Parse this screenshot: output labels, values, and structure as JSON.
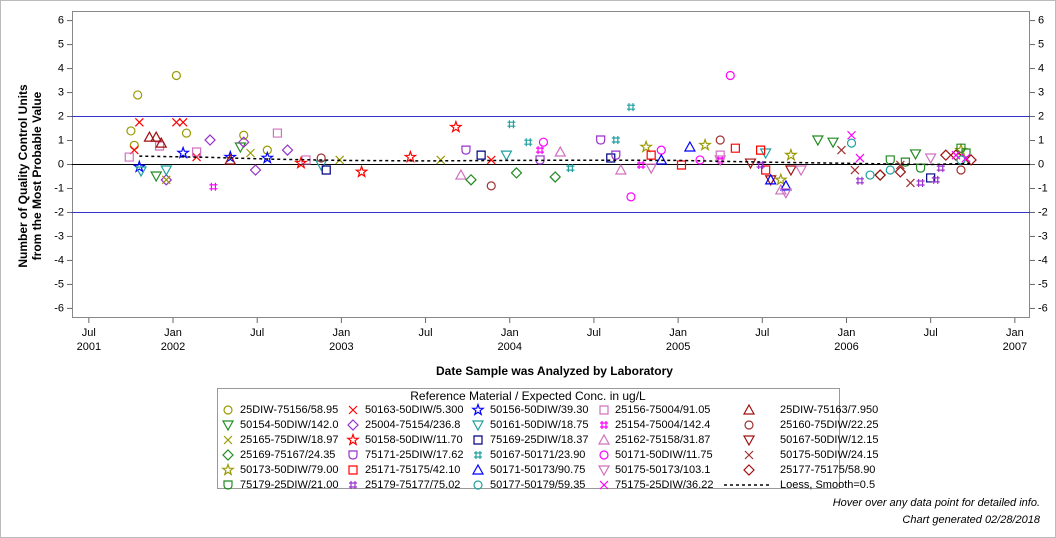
{
  "chart_data": {
    "type": "scatter",
    "y_label": [
      "Number of Quality Control Units",
      "from the Most Probable Value"
    ],
    "x_label": "Date Sample was Analyzed by Laboratory",
    "legend_title": "Reference Material / Expected Conc. in ug/L",
    "footnotes": [
      "Hover over any data point for detailed info.",
      "Chart generated 02/28/2018"
    ],
    "xlim": [
      2001.4,
      2007.09
    ],
    "ylim": [
      -6.4,
      6.4
    ],
    "xticks": [
      {
        "value": 2001.5,
        "label": [
          "Jul",
          "2001"
        ]
      },
      {
        "value": 2002.0,
        "label": [
          "Jan",
          "2002"
        ]
      },
      {
        "value": 2002.5,
        "label": [
          "Jul"
        ]
      },
      {
        "value": 2003.0,
        "label": [
          "Jan",
          "2003"
        ]
      },
      {
        "value": 2003.5,
        "label": [
          "Jul"
        ]
      },
      {
        "value": 2004.0,
        "label": [
          "Jan",
          "2004"
        ]
      },
      {
        "value": 2004.5,
        "label": [
          "Jul"
        ]
      },
      {
        "value": 2005.0,
        "label": [
          "Jan",
          "2005"
        ]
      },
      {
        "value": 2005.5,
        "label": [
          "Jul"
        ]
      },
      {
        "value": 2006.0,
        "label": [
          "Jan",
          "2006"
        ]
      },
      {
        "value": 2006.5,
        "label": [
          "Jul"
        ]
      },
      {
        "value": 2007.0,
        "label": [
          "Jan",
          "2007"
        ]
      }
    ],
    "yticks": [
      -6,
      -5,
      -4,
      -3,
      -2,
      -1,
      0,
      1,
      2,
      3,
      4,
      5,
      6
    ],
    "reference_lines": [
      {
        "value": 2,
        "color": "#3333cc"
      },
      {
        "value": 0,
        "color": "#000000"
      },
      {
        "value": -2,
        "color": "#3333cc"
      }
    ],
    "series": [
      {
        "name": "25DIW-75156/58.95",
        "marker": "circle",
        "color": "#999900",
        "x": [
          2001.75,
          2001.79,
          2001.77,
          2002.02,
          2002.08,
          2002.42,
          2002.56
        ],
        "values": [
          1.4,
          2.9,
          0.8,
          3.71,
          1.31,
          1.22,
          0.6
        ]
      },
      {
        "name": "50163-50DIW/5.300",
        "marker": "x",
        "color": "#ff0000",
        "x": [
          2001.8,
          2002.02,
          2002.06,
          2001.77,
          2002.14,
          2003.89
        ],
        "values": [
          1.76,
          1.76,
          1.76,
          0.6,
          0.31,
          0.19
        ]
      },
      {
        "name": "50156-50DIW/39.30",
        "marker": "star",
        "color": "#0000ff",
        "x": [
          2001.8,
          2002.06,
          2002.56,
          2002.34
        ],
        "values": [
          -0.1,
          0.48,
          0.27,
          0.31
        ]
      },
      {
        "name": "25156-75004/91.05",
        "marker": "square",
        "color": "#d070c0",
        "x": [
          2001.74,
          2001.92,
          2002.14,
          2002.62,
          2002.79,
          2005.25
        ],
        "values": [
          0.31,
          0.77,
          0.52,
          1.31,
          0.19,
          0.39
        ]
      },
      {
        "name": "25DIW-75163/7.950",
        "marker": "triangle",
        "color": "#a01010",
        "x": [
          2001.86,
          2001.9,
          2001.93,
          2002.34
        ],
        "values": [
          1.14,
          1.14,
          0.89,
          0.19
        ]
      },
      {
        "name": "50154-50DIW/142.0",
        "marker": "tridown",
        "color": "#228b22",
        "x": [
          2001.9,
          2002.4,
          2005.83,
          2005.92,
          2006.41
        ],
        "values": [
          -0.48,
          0.73,
          1.02,
          0.93,
          0.44
        ]
      },
      {
        "name": "25004-75154/236.8",
        "marker": "diamond",
        "color": "#9932cc",
        "x": [
          2001.96,
          2002.22,
          2002.42,
          2002.49,
          2002.68
        ],
        "values": [
          -0.64,
          1.02,
          0.93,
          -0.23,
          0.6
        ]
      },
      {
        "name": "50161-50DIW/18.75",
        "marker": "tridown",
        "color": "#20a0a0",
        "x": [
          2001.81,
          2001.96,
          2002.88,
          2003.98,
          2005.52
        ],
        "values": [
          -0.27,
          -0.23,
          -0.02,
          0.39,
          0.48
        ]
      },
      {
        "name": "25154-75004/142.4",
        "marker": "asterisk",
        "color": "#ff00ff",
        "x": [
          2002.24,
          2004.18,
          2004.78,
          2005.25
        ],
        "values": [
          -0.93,
          0.6,
          -0.02,
          0.19
        ]
      },
      {
        "name": "25160-75DIW/22.25",
        "marker": "circle",
        "color": "#a03030",
        "x": [
          2003.89,
          2002.88,
          2005.25,
          2006.68
        ],
        "values": [
          -0.89,
          0.27,
          1.02,
          -0.23
        ]
      },
      {
        "name": "25165-75DIW/18.97",
        "marker": "x",
        "color": "#999900",
        "x": [
          2001.96,
          2002.46,
          2002.99,
          2003.59
        ],
        "values": [
          -0.64,
          0.48,
          0.19,
          0.19
        ]
      },
      {
        "name": "50158-50DIW/11.70",
        "marker": "star",
        "color": "#ff0000",
        "x": [
          2003.68,
          2003.12,
          2003.41,
          2002.76
        ],
        "values": [
          1.56,
          -0.31,
          0.31,
          0.06
        ]
      },
      {
        "name": "75169-25DIW/18.37",
        "marker": "square",
        "color": "#000080",
        "x": [
          2002.91,
          2004.6,
          2006.5,
          2003.83
        ],
        "values": [
          -0.23,
          0.27,
          -0.56,
          0.39
        ]
      },
      {
        "name": "25162-75158/31.87",
        "marker": "triangle",
        "color": "#d070c0",
        "x": [
          2003.71,
          2004.3,
          2005.61,
          2004.66
        ],
        "values": [
          -0.44,
          0.52,
          -1.06,
          -0.23
        ]
      },
      {
        "name": "50167-50DIW/12.15",
        "marker": "tridown",
        "color": "#a01010",
        "x": [
          2005.55,
          2005.67,
          2005.43
        ],
        "values": [
          -0.64,
          -0.23,
          0.06
        ]
      },
      {
        "name": "25169-75167/24.35",
        "marker": "diamond",
        "color": "#228b22",
        "x": [
          2003.77,
          2004.04,
          2004.27,
          2006.2
        ],
        "values": [
          -0.64,
          -0.35,
          -0.52,
          -0.44
        ]
      },
      {
        "name": "75171-25DIW/17.62",
        "marker": "shield",
        "color": "#9932cc",
        "x": [
          2003.74,
          2004.54,
          2004.63,
          2004.18
        ],
        "values": [
          0.6,
          1.02,
          0.39,
          0.19
        ]
      },
      {
        "name": "50167-50171/23.90",
        "marker": "asterisk",
        "color": "#20a0a0",
        "x": [
          2004.01,
          2004.72,
          2004.11,
          2004.63,
          2004.36
        ],
        "values": [
          1.68,
          2.39,
          0.93,
          1.02,
          -0.15
        ]
      },
      {
        "name": "50171-50DIW/11.75",
        "marker": "circle",
        "color": "#ff00ff",
        "x": [
          2004.72,
          2005.31,
          2004.2,
          2004.9,
          2005.13
        ],
        "values": [
          -1.35,
          3.71,
          0.93,
          0.6,
          0.19
        ]
      },
      {
        "name": "50175-50DIW/24.15",
        "marker": "x",
        "color": "#a03030",
        "x": [
          2005.97,
          2006.05,
          2006.32,
          2006.38
        ],
        "values": [
          0.6,
          -0.23,
          -0.02,
          -0.77
        ]
      },
      {
        "name": "50173-50DIW/79.00",
        "marker": "star",
        "color": "#999900",
        "x": [
          2004.81,
          2005.16,
          2005.61,
          2005.67,
          2006.68
        ],
        "values": [
          0.73,
          0.81,
          -0.64,
          0.39,
          0.6
        ]
      },
      {
        "name": "25171-75175/42.10",
        "marker": "square",
        "color": "#ff0000",
        "x": [
          2004.84,
          2005.02,
          2005.34,
          2005.49,
          2005.52
        ],
        "values": [
          0.39,
          -0.02,
          0.68,
          0.6,
          -0.23
        ]
      },
      {
        "name": "50171-50173/90.75",
        "marker": "triangle",
        "color": "#0000ff",
        "x": [
          2005.07,
          2005.55,
          2005.64,
          2004.9
        ],
        "values": [
          0.73,
          -0.64,
          -0.89,
          0.19
        ]
      },
      {
        "name": "50175-50173/103.1",
        "marker": "tridown",
        "color": "#d070c0",
        "x": [
          2005.25,
          2005.64,
          2005.73,
          2006.5,
          2004.84
        ],
        "values": [
          0.19,
          -1.18,
          -0.23,
          0.27,
          -0.15
        ]
      },
      {
        "name": "25177-75175/58.90",
        "marker": "diamond",
        "color": "#a01010",
        "x": [
          2006.2,
          2006.32,
          2006.59,
          2006.65,
          2006.74
        ],
        "values": [
          -0.44,
          -0.31,
          0.39,
          0.39,
          0.19
        ]
      },
      {
        "name": "75179-25DIW/21.00",
        "marker": "shield",
        "color": "#228b22",
        "x": [
          2006.26,
          2006.35,
          2006.68,
          2006.71,
          2006.44
        ],
        "values": [
          0.19,
          0.1,
          0.68,
          0.48,
          -0.15
        ]
      },
      {
        "name": "25179-75177/75.02",
        "marker": "asterisk",
        "color": "#9932cc",
        "x": [
          2006.08,
          2006.44,
          2006.53,
          2006.56,
          2005.49
        ],
        "values": [
          -0.68,
          -0.77,
          -0.64,
          -0.15,
          -0.02
        ]
      },
      {
        "name": "50177-50179/59.35",
        "marker": "circle",
        "color": "#20a0a0",
        "x": [
          2006.03,
          2006.14,
          2006.26,
          2006.68
        ],
        "values": [
          0.89,
          -0.44,
          -0.23,
          0.19
        ]
      },
      {
        "name": "75175-25DIW/36.22",
        "marker": "x",
        "color": "#ff00ff",
        "x": [
          2006.03,
          2006.08,
          2006.65,
          2006.71
        ],
        "values": [
          1.22,
          0.27,
          0.39,
          0.27
        ]
      },
      {
        "name": "Loess, Smooth=0.5",
        "marker": "dashed-line",
        "color": "#000000",
        "x": [
          2001.8,
          2002.2,
          2002.6,
          2003.0,
          2003.5,
          2004.0,
          2004.5,
          2005.0,
          2005.5,
          2006.0,
          2006.5,
          2006.75
        ],
        "values": [
          0.35,
          0.3,
          0.22,
          0.17,
          0.15,
          0.17,
          0.18,
          0.17,
          0.1,
          0.05,
          0.0,
          0.05
        ]
      }
    ]
  }
}
